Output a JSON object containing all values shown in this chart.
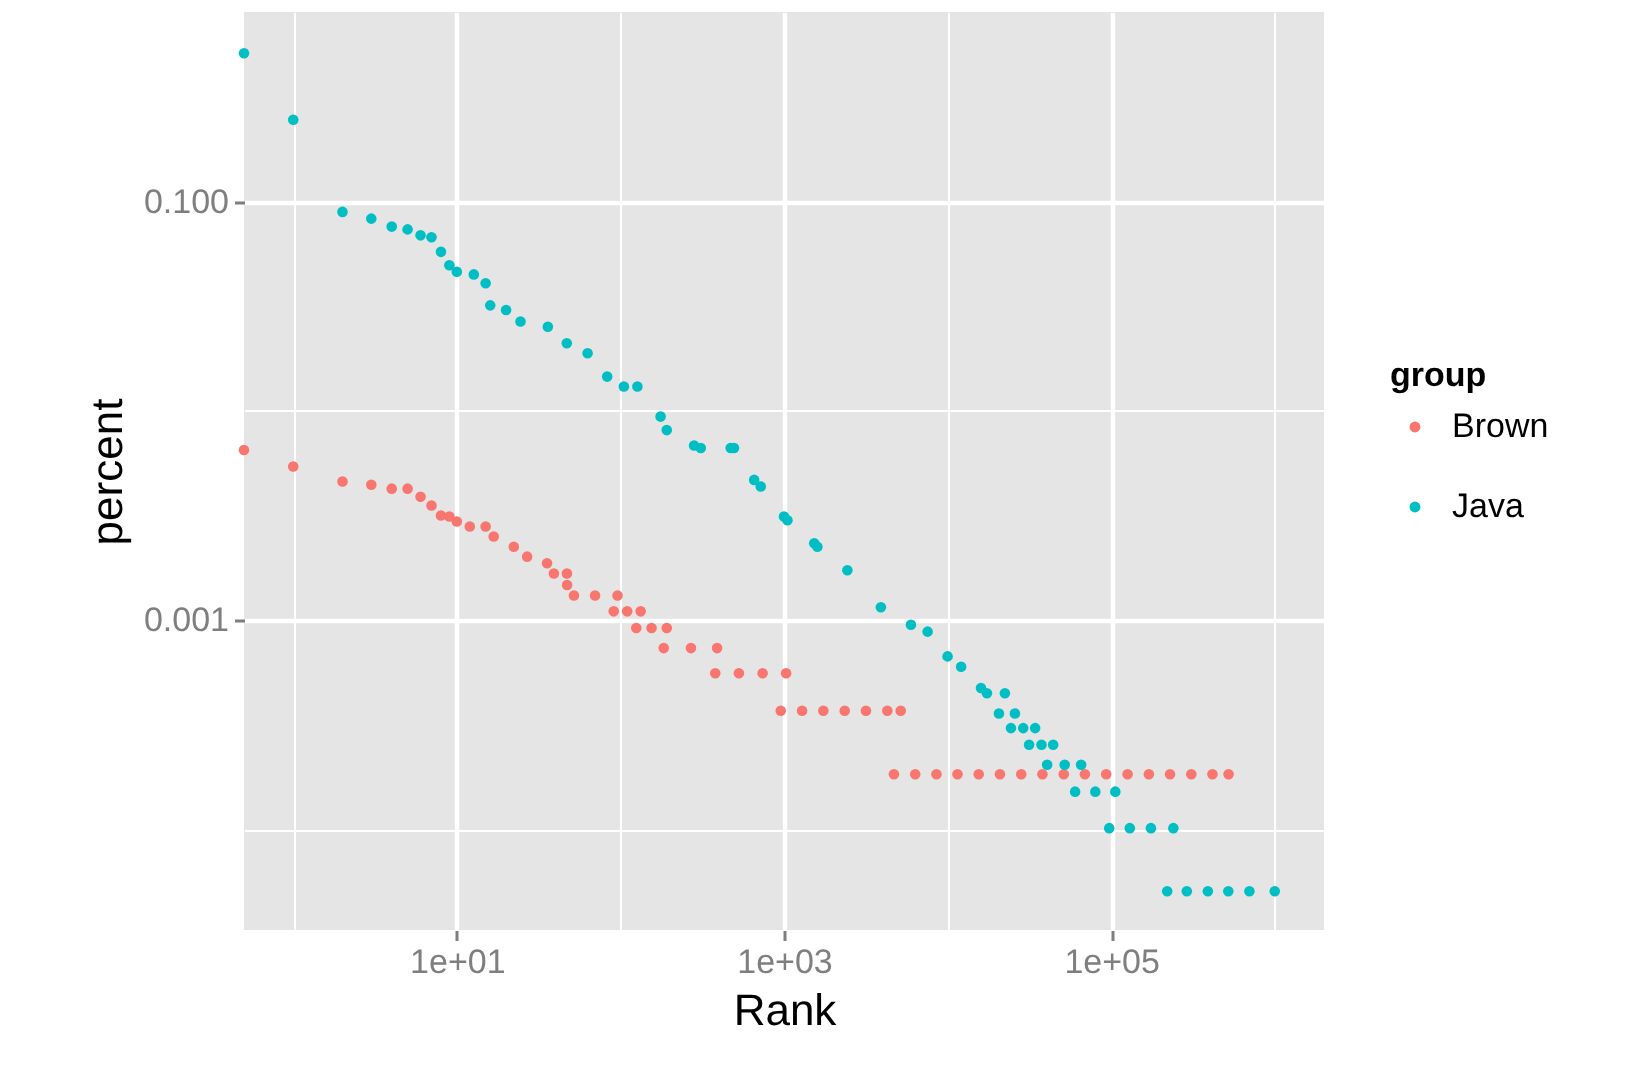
{
  "chart_data": {
    "type": "scatter",
    "xlabel": "Rank",
    "ylabel": "percent",
    "legend_title": "group",
    "legend": "right",
    "marker": "circle",
    "grid": true,
    "log": "xy",
    "xlim": [
      0.5,
      2000000
    ],
    "xticks": [
      {
        "value": 1,
        "label": null
      },
      {
        "value": 10,
        "label": "1e+01"
      },
      {
        "value": 100,
        "label": null
      },
      {
        "value": 1000,
        "label": "1e+03"
      },
      {
        "value": 10000,
        "label": null
      },
      {
        "value": 100000,
        "label": "1e+05"
      },
      {
        "value": 1000000,
        "label": null
      }
    ],
    "ylim": [
      3.29e-05,
      0.81
    ],
    "yticks": [
      {
        "value": 0.0001,
        "label": null
      },
      {
        "value": 0.001,
        "label": "0.001"
      },
      {
        "value": 0.01,
        "label": null
      },
      {
        "value": 0.1,
        "label": "0.100"
      }
    ],
    "series": [
      {
        "name": "Brown",
        "color": "#f8766d",
        "x": [
          0.5,
          1,
          2,
          3,
          4,
          5,
          6,
          7,
          8,
          9,
          10,
          12,
          15,
          16.8,
          22.3,
          26.9,
          35.6,
          39.2,
          47.1,
          47.2,
          52,
          70,
          96,
          91,
          110,
          133,
          125,
          155,
          192,
          184,
          270,
          390,
          380,
          530,
          740,
          1030,
          955,
          1290,
          1740,
          2350,
          3170,
          4280,
          5170,
          4700,
          6340,
          8550,
          11500,
          15500,
          20900,
          28200,
          38000,
          51300,
          69100,
          93200,
          126000,
          170000,
          229000,
          309000,
          416000,
          522000
        ],
        "values": [
          0.0065,
          0.00542,
          0.0046,
          0.00444,
          0.00425,
          0.00425,
          0.00389,
          0.00353,
          0.00316,
          0.00313,
          0.00296,
          0.0028,
          0.0028,
          0.00251,
          0.00224,
          0.00201,
          0.00187,
          0.00167,
          0.00167,
          0.00147,
          0.00131,
          0.00131,
          0.00131,
          0.0011,
          0.0011,
          0.0011,
          0.000916,
          0.000916,
          0.000916,
          0.000734,
          0.000734,
          0.000734,
          0.000556,
          0.000556,
          0.000556,
          0.000556,
          0.000368,
          0.000368,
          0.000368,
          0.000368,
          0.000368,
          0.000368,
          0.000368,
          0.000183,
          0.000183,
          0.000183,
          0.000183,
          0.000183,
          0.000183,
          0.000183,
          0.000183,
          0.000183,
          0.000183,
          0.000183,
          0.000183,
          0.000183,
          0.000183,
          0.000183,
          0.000183,
          0.000183
        ]
      },
      {
        "name": "Java",
        "color": "#00bfc4",
        "x": [
          0.5,
          1,
          2,
          3,
          4,
          5,
          6,
          7,
          8,
          9,
          10,
          12.7,
          15,
          16,
          20,
          24.5,
          36,
          47,
          63,
          83,
          105,
          127,
          176,
          192,
          282,
          310,
          472,
          495,
          657,
          721,
          1000,
          1050,
          1530,
          1600,
          2440,
          3910,
          5970,
          7550,
          10000,
          12100,
          16000,
          17400,
          22400,
          20600,
          25800,
          24400,
          29000,
          34300,
          31500,
          37500,
          44200,
          40600,
          52000,
          65500,
          60200,
          80000,
          106000,
          97300,
          130000,
          175000,
          240000,
          220000,
          290000,
          390000,
          520000,
          700000,
          1000000
        ],
        "values": [
          0.514,
          0.247,
          0.0896,
          0.0832,
          0.0762,
          0.0739,
          0.0692,
          0.0678,
          0.0577,
          0.0498,
          0.0463,
          0.045,
          0.0408,
          0.032,
          0.0304,
          0.0268,
          0.0253,
          0.0211,
          0.0189,
          0.0146,
          0.0131,
          0.0131,
          0.0094,
          0.0081,
          0.00684,
          0.00665,
          0.00665,
          0.00665,
          0.00468,
          0.00435,
          0.00313,
          0.003,
          0.00233,
          0.00224,
          0.00173,
          0.00115,
          0.00095,
          0.00088,
          0.00067,
          0.000598,
          0.000473,
          0.000446,
          0.000446,
          0.000357,
          0.000357,
          0.000304,
          0.000304,
          0.000304,
          0.000253,
          0.000253,
          0.000253,
          0.000203,
          0.000203,
          0.000203,
          0.000151,
          0.000151,
          0.000151,
          0.000101,
          0.000101,
          0.000101,
          0.000101,
          5.04e-05,
          5.04e-05,
          5.04e-05,
          5.04e-05,
          5.04e-05,
          5.04e-05
        ]
      }
    ]
  }
}
